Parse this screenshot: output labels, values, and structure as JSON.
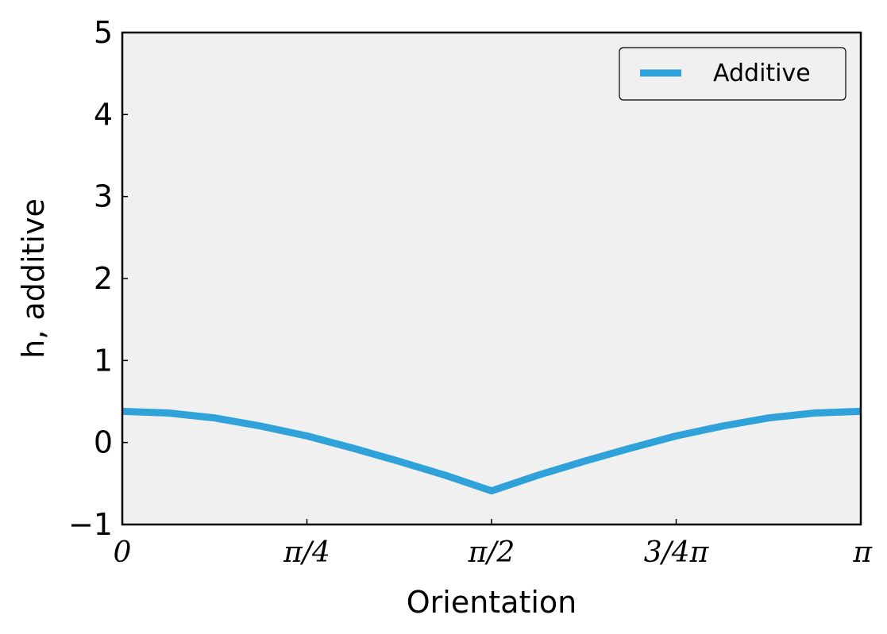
{
  "chart_data": {
    "type": "line",
    "title": "",
    "xlabel": "Orientation",
    "ylabel": "h, additive",
    "xlim": [
      0,
      3.14159265
    ],
    "ylim": [
      -1,
      5
    ],
    "x_ticks": [
      {
        "value": 0,
        "label": "0"
      },
      {
        "value": 0.78539816,
        "label": "π/4"
      },
      {
        "value": 1.57079633,
        "label": "π/2"
      },
      {
        "value": 2.35619449,
        "label": "3/4π"
      },
      {
        "value": 3.14159265,
        "label": "π"
      }
    ],
    "y_ticks": [
      {
        "value": -1,
        "label": "−1"
      },
      {
        "value": 0,
        "label": "0"
      },
      {
        "value": 1,
        "label": "1"
      },
      {
        "value": 2,
        "label": "2"
      },
      {
        "value": 3,
        "label": "3"
      },
      {
        "value": 4,
        "label": "4"
      },
      {
        "value": 5,
        "label": "5"
      }
    ],
    "grid": false,
    "plot_background": "#f0f0f0",
    "legend_position": "top-right",
    "series": [
      {
        "name": "Additive",
        "color": "#30a2da",
        "x": [
          0,
          0.19634954,
          0.39269908,
          0.58904862,
          0.78539816,
          0.9817477,
          1.17809725,
          1.37444679,
          1.57079633,
          1.76714587,
          1.96349541,
          2.15984495,
          2.35619449,
          2.55254403,
          2.74889357,
          2.94524311,
          3.14159265
        ],
        "y": [
          0.38,
          0.36,
          0.3,
          0.2,
          0.08,
          -0.07,
          -0.23,
          -0.4,
          -0.59,
          -0.4,
          -0.23,
          -0.07,
          0.08,
          0.2,
          0.3,
          0.36,
          0.38
        ]
      }
    ]
  }
}
